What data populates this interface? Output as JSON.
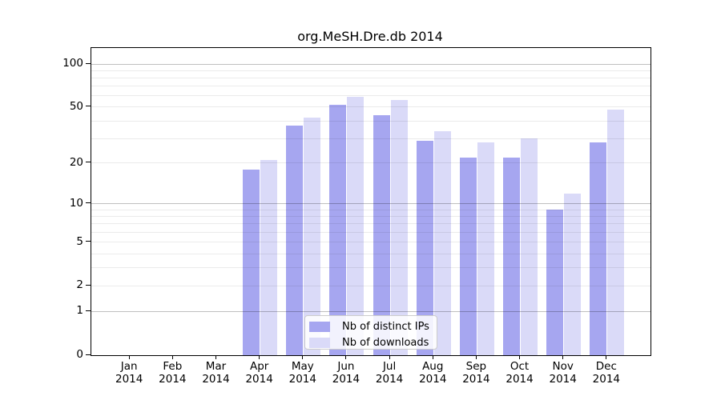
{
  "title": "org.MeSH.Dre.db 2014",
  "chart_data": {
    "type": "bar",
    "title": "org.MeSH.Dre.db 2014",
    "y_scale": "log1p",
    "ylim": [
      0,
      130
    ],
    "grid": "on",
    "legend_position": "bottom-center",
    "categories": [
      "Jan",
      "Feb",
      "Mar",
      "Apr",
      "May",
      "Jun",
      "Jul",
      "Aug",
      "Sep",
      "Oct",
      "Nov",
      "Dec"
    ],
    "year": "2014",
    "series": [
      {
        "name": "Nb of distinct IPs",
        "color": "#a6a6f0",
        "values": [
          0,
          0,
          0,
          18,
          37,
          52,
          44,
          29,
          22,
          22,
          9,
          28
        ]
      },
      {
        "name": "Nb of downloads",
        "color": "#dadaf8",
        "values": [
          0,
          0,
          0,
          21,
          42,
          59,
          56,
          34,
          28,
          30,
          12,
          48
        ]
      }
    ],
    "y_axis": {
      "tick_values": [
        0,
        1,
        2,
        5,
        10,
        20,
        50,
        100
      ],
      "tick_labels": [
        "0",
        "1",
        "2",
        "5",
        "10",
        "20",
        "50",
        "100"
      ]
    },
    "gridlines": {
      "major_values": [
        1,
        10,
        100
      ],
      "minor_values": [
        2,
        3,
        4,
        5,
        6,
        7,
        8,
        9,
        20,
        30,
        40,
        50,
        60,
        70,
        80,
        90
      ]
    },
    "colors": {
      "frame": "#000000",
      "background": "#ffffff",
      "grid_major": "rgba(0,0,0,0.25)",
      "grid_minor": "rgba(0,0,0,0.08)",
      "legend_border": "#cccccc"
    }
  }
}
